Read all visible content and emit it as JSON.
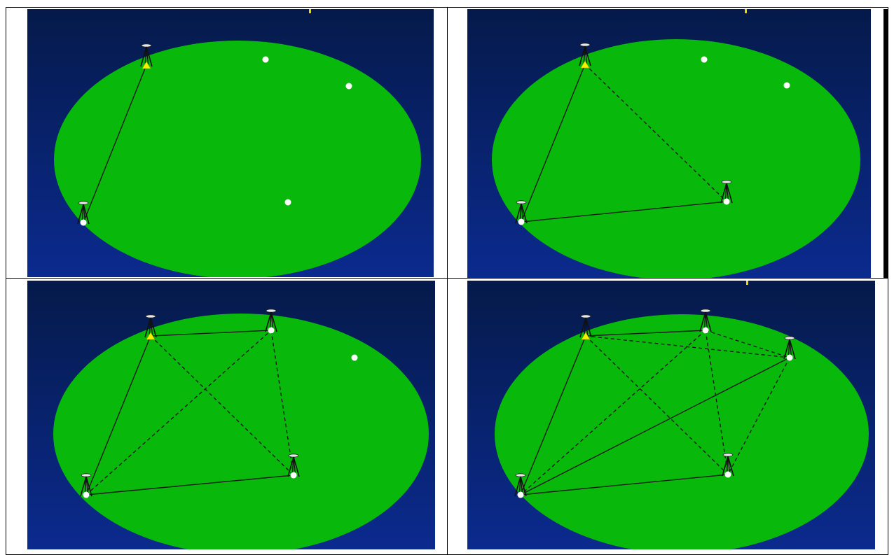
{
  "colors": {
    "sky_top": "#051a4a",
    "sky_bottom": "#0b2a8e",
    "field": "#08b80a",
    "line": "#1a1a1a",
    "point": "#ffffff",
    "base_marker": "#f2f200",
    "accent_tick": "#f2d200"
  },
  "icons": [
    "tripod-icon",
    "survey-point-icon",
    "base-station-icon"
  ],
  "panels": [
    {
      "id": "panel-step-1",
      "description_none": "",
      "points": [
        {
          "id": "A",
          "type": "base",
          "tripod": true
        },
        {
          "id": "B",
          "type": "point",
          "tripod": false
        },
        {
          "id": "C",
          "type": "point",
          "tripod": false
        },
        {
          "id": "D",
          "type": "point",
          "tripod": false
        },
        {
          "id": "E",
          "type": "point",
          "tripod": true
        }
      ],
      "lines": [
        {
          "from": "A",
          "to": "E",
          "style": "solid"
        }
      ]
    },
    {
      "id": "panel-step-2",
      "points": [
        {
          "id": "A",
          "type": "base",
          "tripod": true
        },
        {
          "id": "B",
          "type": "point",
          "tripod": false
        },
        {
          "id": "C",
          "type": "point",
          "tripod": false
        },
        {
          "id": "D",
          "type": "point",
          "tripod": true
        },
        {
          "id": "E",
          "type": "point",
          "tripod": true
        }
      ],
      "lines": [
        {
          "from": "A",
          "to": "E",
          "style": "solid"
        },
        {
          "from": "E",
          "to": "D",
          "style": "solid"
        },
        {
          "from": "A",
          "to": "D",
          "style": "dashed"
        }
      ]
    },
    {
      "id": "panel-step-3",
      "points": [
        {
          "id": "A",
          "type": "base",
          "tripod": true
        },
        {
          "id": "B",
          "type": "point",
          "tripod": true
        },
        {
          "id": "C",
          "type": "point",
          "tripod": false
        },
        {
          "id": "D",
          "type": "point",
          "tripod": true
        },
        {
          "id": "E",
          "type": "point",
          "tripod": true
        }
      ],
      "lines": [
        {
          "from": "A",
          "to": "B",
          "style": "solid"
        },
        {
          "from": "A",
          "to": "E",
          "style": "solid"
        },
        {
          "from": "E",
          "to": "D",
          "style": "solid"
        },
        {
          "from": "A",
          "to": "D",
          "style": "dashed"
        },
        {
          "from": "E",
          "to": "B",
          "style": "dashed"
        },
        {
          "from": "B",
          "to": "D",
          "style": "dashed"
        }
      ]
    },
    {
      "id": "panel-step-4",
      "points": [
        {
          "id": "A",
          "type": "base",
          "tripod": true
        },
        {
          "id": "B",
          "type": "point",
          "tripod": true
        },
        {
          "id": "C",
          "type": "point",
          "tripod": true
        },
        {
          "id": "D",
          "type": "point",
          "tripod": true
        },
        {
          "id": "E",
          "type": "point",
          "tripod": true
        }
      ],
      "lines": [
        {
          "from": "A",
          "to": "B",
          "style": "solid"
        },
        {
          "from": "A",
          "to": "E",
          "style": "solid"
        },
        {
          "from": "E",
          "to": "D",
          "style": "solid"
        },
        {
          "from": "E",
          "to": "C",
          "style": "solid"
        },
        {
          "from": "A",
          "to": "C",
          "style": "dashed"
        },
        {
          "from": "A",
          "to": "D",
          "style": "dashed"
        },
        {
          "from": "B",
          "to": "C",
          "style": "dashed"
        },
        {
          "from": "B",
          "to": "D",
          "style": "dashed"
        },
        {
          "from": "B",
          "to": "E",
          "style": "dashed"
        },
        {
          "from": "C",
          "to": "D",
          "style": "dashed"
        }
      ]
    }
  ]
}
